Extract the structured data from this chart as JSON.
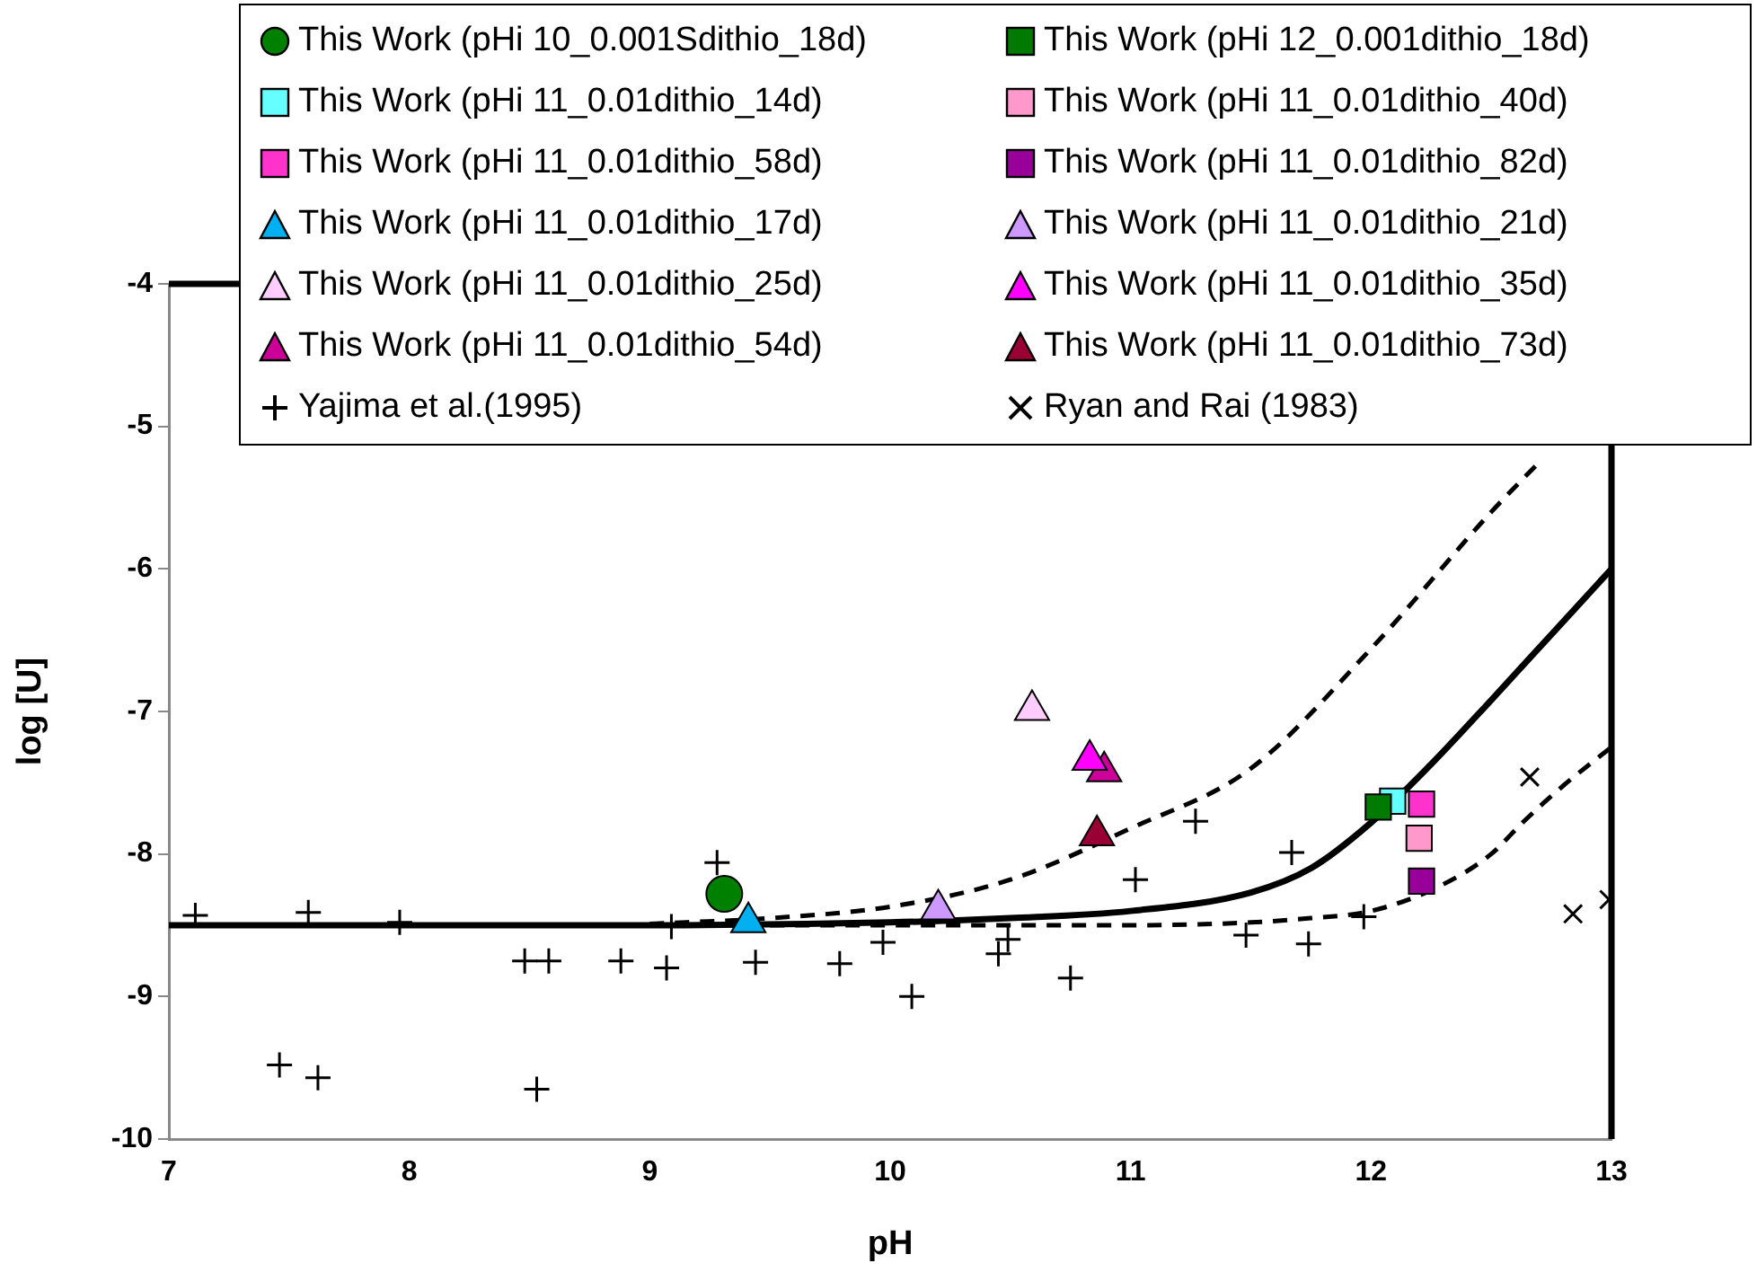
{
  "chart_data": {
    "type": "scatter",
    "xlabel": "pH",
    "ylabel": "log [U]",
    "xlim": [
      7,
      13
    ],
    "ylim": [
      -10,
      -4
    ],
    "xticks": [
      7,
      8,
      9,
      10,
      11,
      12,
      13
    ],
    "yticks": [
      -10,
      -9,
      -8,
      -7,
      -6,
      -5,
      -4
    ],
    "grid": false,
    "legend": "top right",
    "series": [
      {
        "name": "This Work (pHi 10_0.001Sdithio_18d)",
        "color": "#008000",
        "marker": "circle",
        "x": [
          9.31
        ],
        "values": [
          -8.28
        ]
      },
      {
        "name": "This Work (pHi 12_0.001dithio_18d)",
        "color": "#007a00",
        "marker": "square",
        "x": [
          12.03
        ],
        "values": [
          -7.67
        ]
      },
      {
        "name": "This Work (pHi 11_0.01dithio_14d)",
        "color": "#66ffff",
        "marker": "square",
        "x": [
          12.09
        ],
        "values": [
          -7.63
        ]
      },
      {
        "name": "This Work (pHi 11_0.01dithio_40d)",
        "color": "#ff99cc",
        "marker": "square",
        "x": [
          12.2
        ],
        "values": [
          -7.89
        ]
      },
      {
        "name": "This Work (pHi 11_0.01dithio_58d)",
        "color": "#ff33cc",
        "marker": "square",
        "x": [
          12.21
        ],
        "values": [
          -7.65
        ]
      },
      {
        "name": "This Work (pHi 11_0.01dithio_82d)",
        "color": "#990099",
        "marker": "square",
        "x": [
          12.21
        ],
        "values": [
          -8.19
        ]
      },
      {
        "name": "This Work (pHi 11_0.01dithio_17d)",
        "color": "#00b0f0",
        "marker": "triangle",
        "x": [
          9.41
        ],
        "values": [
          -8.48
        ]
      },
      {
        "name": "This Work (pHi 11_0.01dithio_21d)",
        "color": "#cc99ff",
        "marker": "triangle",
        "x": [
          10.2
        ],
        "values": [
          -8.39
        ]
      },
      {
        "name": "This Work (pHi 11_0.01dithio_25d)",
        "color": "#ffccff",
        "marker": "triangle",
        "x": [
          10.59
        ],
        "values": [
          -6.99
        ]
      },
      {
        "name": "This Work (pHi 11_0.01dithio_35d)",
        "color": "#ff00ff",
        "marker": "triangle",
        "x": [
          10.83
        ],
        "values": [
          -7.34
        ]
      },
      {
        "name": "This Work (pHi 11_0.01dithio_54d)",
        "color": "#cc0099",
        "marker": "triangle",
        "x": [
          10.89
        ],
        "values": [
          -7.42
        ]
      },
      {
        "name": "This Work (pHi 11_0.01dithio_73d)",
        "color": "#990033",
        "marker": "triangle",
        "x": [
          10.86
        ],
        "values": [
          -7.87
        ]
      },
      {
        "name": "Yajima et al.(1995)",
        "color": "#000000",
        "marker": "cross",
        "x": [
          7.11,
          7.58,
          7.96,
          8.48,
          8.58,
          8.88,
          9.07,
          9.09,
          9.28,
          9.44,
          9.79,
          9.97,
          10.09,
          7.46,
          7.62,
          8.53,
          10.49,
          10.45,
          10.75,
          11.02,
          11.27,
          11.48,
          11.67,
          11.74,
          11.97
        ],
        "values": [
          -8.43,
          -8.41,
          -8.48,
          -8.75,
          -8.75,
          -8.75,
          -8.8,
          -8.51,
          -8.06,
          -8.76,
          -8.77,
          -8.62,
          -9.0,
          -9.48,
          -9.57,
          -9.65,
          -8.6,
          -8.7,
          -8.87,
          -8.18,
          -7.77,
          -8.57,
          -7.99,
          -8.63,
          -8.44
        ]
      },
      {
        "name": "Ryan and Rai (1983)",
        "color": "#000000",
        "marker": "x",
        "x": [
          12.66,
          12.84,
          12.99
        ],
        "values": [
          -7.46,
          -8.42,
          -8.32
        ]
      },
      {
        "type": "line",
        "color": "#000000",
        "marker": "none",
        "line_style": "solid",
        "x": [
          7,
          9,
          10,
          10.5,
          11,
          11.5,
          11.75,
          12,
          12.25,
          12.5,
          12.75,
          13
        ],
        "values": [
          -8.5,
          -8.5,
          -8.48,
          -8.45,
          -8.4,
          -8.27,
          -8.1,
          -7.78,
          -7.37,
          -6.92,
          -6.46,
          -6.0
        ]
      },
      {
        "type": "line",
        "color": "#000000",
        "marker": "none",
        "line_style": "dashed",
        "x": [
          9,
          9.5,
          10,
          10.5,
          11,
          11.5,
          12,
          12.5,
          12.7
        ],
        "values": [
          -8.49,
          -8.45,
          -8.37,
          -8.18,
          -7.82,
          -7.4,
          -6.56,
          -5.6,
          -5.25
        ]
      },
      {
        "type": "line",
        "color": "#000000",
        "marker": "none",
        "line_style": "dashed",
        "x": [
          9.5,
          11,
          11.5,
          11.75,
          12,
          12.28,
          12.5,
          12.63,
          12.8,
          13
        ],
        "values": [
          -8.5,
          -8.5,
          -8.48,
          -8.45,
          -8.4,
          -8.23,
          -8.0,
          -7.78,
          -7.52,
          -7.25
        ]
      }
    ]
  }
}
